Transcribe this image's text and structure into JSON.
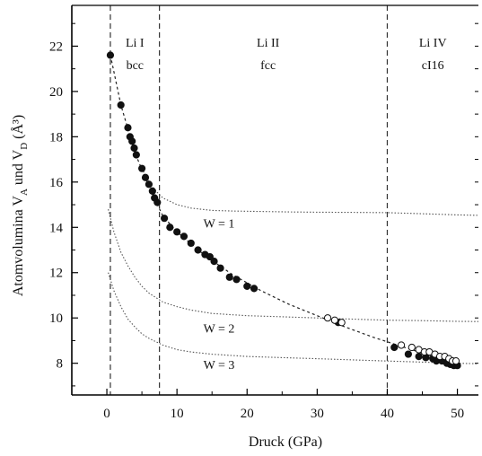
{
  "chart_data": {
    "type": "scatter",
    "title": "",
    "xlabel": "Druck (GPa)",
    "ylabel_parts": [
      "Atomvolumina V",
      "A",
      " und V",
      "D",
      " (Å³)"
    ],
    "xlim": [
      -5,
      53
    ],
    "ylim": [
      6.6,
      23.8
    ],
    "xticks": [
      0,
      10,
      20,
      30,
      40,
      50
    ],
    "yticks": [
      8,
      10,
      12,
      14,
      16,
      18,
      20,
      22
    ],
    "phase_boundaries": [
      0.5,
      7.5,
      40
    ],
    "phase_labels": [
      {
        "name": "Li I",
        "structure": "bcc",
        "x": 4.0
      },
      {
        "name": "Li II",
        "structure": "fcc",
        "x": 23.0
      },
      {
        "name": "Li IV",
        "structure": "cI16",
        "x": 46.5
      }
    ],
    "series": [
      {
        "marker": "filled-circle",
        "x": [
          0.5,
          2.0,
          3.0,
          3.3,
          3.6,
          3.9,
          4.2,
          5.0,
          5.5,
          6.0,
          6.5,
          6.8,
          7.2,
          8.2,
          9.0,
          10.0,
          11.0,
          12.0,
          13.0,
          14.0,
          14.7,
          15.3,
          16.2,
          17.5,
          18.5,
          20.0,
          21.0,
          33.0,
          41.0,
          43.0,
          44.5,
          45.5,
          46.5,
          47.0,
          47.8,
          48.5,
          49.0,
          49.5,
          50.0
        ],
        "y": [
          21.6,
          19.4,
          18.4,
          18.0,
          17.8,
          17.5,
          17.2,
          16.6,
          16.2,
          15.9,
          15.6,
          15.3,
          15.1,
          14.4,
          14.0,
          13.8,
          13.6,
          13.3,
          13.0,
          12.8,
          12.7,
          12.5,
          12.2,
          11.8,
          11.7,
          11.4,
          11.3,
          9.8,
          8.7,
          8.4,
          8.3,
          8.25,
          8.2,
          8.1,
          8.1,
          8.0,
          7.95,
          7.9,
          7.9
        ]
      },
      {
        "marker": "open-circle",
        "x": [
          31.5,
          32.5,
          33.5,
          42.0,
          43.5,
          44.5,
          45.3,
          46.0,
          46.8,
          47.5,
          48.2,
          48.8,
          49.3,
          49.8
        ],
        "y": [
          10.0,
          9.9,
          9.8,
          8.8,
          8.7,
          8.6,
          8.5,
          8.5,
          8.4,
          8.3,
          8.3,
          8.2,
          8.1,
          8.1
        ]
      }
    ],
    "fit_curve": {
      "style": "dashed",
      "x": [
        0.5,
        2,
        4,
        6,
        8,
        10,
        14,
        18,
        22,
        26,
        30,
        34,
        38,
        42,
        46,
        50
      ],
      "y": [
        21.6,
        19.4,
        17.3,
        15.8,
        14.5,
        13.8,
        12.75,
        11.9,
        11.2,
        10.6,
        10.1,
        9.6,
        9.15,
        8.75,
        8.35,
        7.95
      ]
    },
    "model_curves": [
      {
        "label": "W = 1",
        "style": "dotted",
        "x": [
          5,
          6,
          7,
          8,
          10,
          12,
          15,
          18,
          22,
          26,
          30,
          35,
          40,
          45,
          50,
          53
        ],
        "y": [
          16.6,
          16.0,
          15.6,
          15.3,
          15.0,
          14.85,
          14.75,
          14.72,
          14.7,
          14.68,
          14.67,
          14.66,
          14.65,
          14.6,
          14.55,
          14.53
        ]
      },
      {
        "label": "W = 2",
        "style": "dotted",
        "x": [
          0.2,
          1,
          2,
          3,
          4,
          5,
          6,
          8,
          10,
          12,
          15,
          20,
          25,
          30,
          35,
          40,
          45,
          50,
          53
        ],
        "y": [
          14.8,
          13.8,
          12.9,
          12.3,
          11.8,
          11.4,
          11.1,
          10.7,
          10.5,
          10.35,
          10.2,
          10.1,
          10.05,
          10.0,
          9.95,
          9.9,
          9.88,
          9.85,
          9.84
        ]
      },
      {
        "label": "W = 3",
        "style": "dotted",
        "x": [
          0.2,
          1,
          2,
          3,
          4,
          5,
          6,
          8,
          10,
          12,
          15,
          20,
          25,
          30,
          35,
          40,
          45,
          50,
          53
        ],
        "y": [
          12.0,
          11.2,
          10.5,
          9.95,
          9.6,
          9.3,
          9.1,
          8.8,
          8.6,
          8.5,
          8.4,
          8.3,
          8.25,
          8.2,
          8.15,
          8.1,
          8.05,
          8.0,
          7.98
        ]
      }
    ],
    "curve_labels": [
      {
        "text": "W = 1",
        "x": 16.0,
        "y": 14.0
      },
      {
        "text": "W = 2",
        "x": 16.0,
        "y": 9.35
      },
      {
        "text": "W = 3",
        "x": 16.0,
        "y": 7.75
      }
    ],
    "grid": false,
    "legend": "none"
  }
}
